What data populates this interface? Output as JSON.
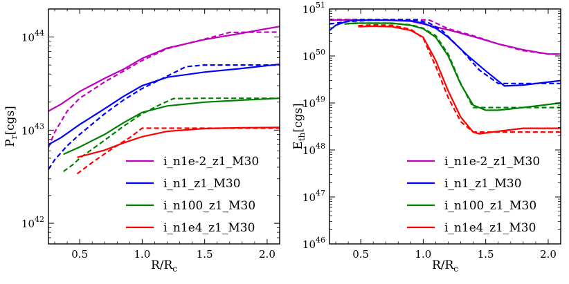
{
  "figure": {
    "panels": 2,
    "colors": {
      "magenta": "#bf00bf",
      "blue": "#0000ff",
      "green": "#008000",
      "red": "#ff0000"
    }
  },
  "legend": [
    {
      "label": "i_n1e-2_z1_M30",
      "color": "#bf00bf"
    },
    {
      "label": "i_n1_z1_M30",
      "color": "#0000ff"
    },
    {
      "label": "i_n100_z1_M30",
      "color": "#008000"
    },
    {
      "label": "i_n1e4_z1_M30",
      "color": "#ff0000"
    }
  ],
  "chart_data": [
    {
      "type": "line",
      "title": "",
      "xlabel": "R/R",
      "xlabel_sub": "c",
      "ylabel": "P",
      "ylabel_sub": "r",
      "ylabel_unit": "[cgs]",
      "yscale": "log",
      "xlim": [
        0.25,
        2.1
      ],
      "ylim": [
        6e+41,
        2e+44
      ],
      "xticks": [
        "0.5",
        "1.0",
        "1.5",
        "2.0"
      ],
      "xtick_values": [
        0.5,
        1.0,
        1.5,
        2.0
      ],
      "yticks": [
        {
          "base": "10",
          "exp": "42",
          "value": 1e+42
        },
        {
          "base": "10",
          "exp": "43",
          "value": 1e+43
        },
        {
          "base": "10",
          "exp": "44",
          "value": 1e+44
        }
      ],
      "legend_position": "lower right",
      "series": [
        {
          "name": "i_n1e-2_z1_M30",
          "color": "#bf00bf",
          "style": "solid",
          "x": [
            0.25,
            0.35,
            0.5,
            0.7,
            0.85,
            1.0,
            1.2,
            1.5,
            1.8,
            2.1
          ],
          "y": [
            1.6e+43,
            1.9e+43,
            2.6e+43,
            3.6e+43,
            4.5e+43,
            5.9e+43,
            7.6e+43,
            9.4e+43,
            1.1e+44,
            1.3e+44
          ]
        },
        {
          "name": "i_n1e-2_z1_M30",
          "color": "#bf00bf",
          "style": "dashed",
          "x": [
            0.25,
            0.3,
            0.4,
            0.5,
            0.7,
            0.85,
            1.0,
            1.2,
            1.5,
            1.7,
            2.1
          ],
          "y": [
            6.5e+42,
            9.5e+42,
            1.6e+43,
            2.2e+43,
            3.3e+43,
            4.3e+43,
            5.6e+43,
            7.5e+43,
            9.5e+43,
            1.12e+44,
            1.13e+44
          ]
        },
        {
          "name": "i_n1_z1_M30",
          "color": "#0000ff",
          "style": "solid",
          "x": [
            0.25,
            0.35,
            0.5,
            0.7,
            0.85,
            1.0,
            1.2,
            1.5,
            1.8,
            2.1
          ],
          "y": [
            7e+42,
            8.3e+42,
            1.15e+43,
            1.7e+43,
            2.3e+43,
            3e+43,
            3.7e+43,
            4.2e+43,
            4.6e+43,
            5.1e+43
          ]
        },
        {
          "name": "i_n1_z1_M30",
          "color": "#0000ff",
          "style": "dashed",
          "x": [
            0.25,
            0.3,
            0.4,
            0.5,
            0.7,
            0.85,
            1.0,
            1.2,
            1.35,
            1.5,
            2.1
          ],
          "y": [
            3.8e+42,
            4.8e+42,
            6.8e+42,
            9e+42,
            1.5e+43,
            2.1e+43,
            2.8e+43,
            3.8e+43,
            4.8e+43,
            5e+43,
            5e+43
          ]
        },
        {
          "name": "i_n100_z1_M30",
          "color": "#008000",
          "style": "solid",
          "x": [
            0.37,
            0.5,
            0.7,
            0.85,
            1.0,
            1.2,
            1.5,
            1.8,
            2.1
          ],
          "y": [
            5.5e+42,
            6.6e+42,
            9e+42,
            1.2e+43,
            1.55e+43,
            1.82e+43,
            2e+43,
            2.1e+43,
            2.2e+43
          ]
        },
        {
          "name": "i_n100_z1_M30",
          "color": "#008000",
          "style": "dashed",
          "x": [
            0.37,
            0.45,
            0.5,
            0.7,
            0.85,
            1.0,
            1.15,
            1.25,
            1.5,
            2.1
          ],
          "y": [
            3.6e+42,
            4.3e+42,
            5e+42,
            7.8e+42,
            1.1e+43,
            1.5e+43,
            1.9e+43,
            2.18e+43,
            2.2e+43,
            2.2e+43
          ]
        },
        {
          "name": "i_n1e4_z1_M30",
          "color": "#ff0000",
          "style": "solid",
          "x": [
            0.48,
            0.7,
            0.85,
            1.0,
            1.2,
            1.5,
            1.8,
            2.1
          ],
          "y": [
            5.1e+42,
            6.1e+42,
            7.3e+42,
            8.5e+42,
            9.7e+42,
            1.04e+43,
            1.06e+43,
            1.07e+43
          ]
        },
        {
          "name": "i_n1e4_z1_M30",
          "color": "#ff0000",
          "style": "dashed",
          "x": [
            0.48,
            0.6,
            0.75,
            0.9,
            1.0,
            1.2,
            1.5,
            2.1
          ],
          "y": [
            3.4e+42,
            4.5e+42,
            6.2e+42,
            8.3e+42,
            1.05e+43,
            1.05e+43,
            1.05e+43,
            1.05e+43
          ]
        }
      ]
    },
    {
      "type": "line",
      "title": "",
      "xlabel": "R/R",
      "xlabel_sub": "c",
      "ylabel": "E",
      "ylabel_sub": "th",
      "ylabel_unit": "[cgs]",
      "yscale": "log",
      "xlim": [
        0.25,
        2.1
      ],
      "ylim": [
        1e+46,
        1e+51
      ],
      "xticks": [
        "0.5",
        "1.0",
        "1.5",
        "2.0"
      ],
      "xtick_values": [
        0.5,
        1.0,
        1.5,
        2.0
      ],
      "yticks": [
        {
          "base": "10",
          "exp": "46",
          "value": 1e+46
        },
        {
          "base": "10",
          "exp": "47",
          "value": 1e+47
        },
        {
          "base": "10",
          "exp": "48",
          "value": 1e+48
        },
        {
          "base": "10",
          "exp": "49",
          "value": 1e+49
        },
        {
          "base": "10",
          "exp": "50",
          "value": 1e+50
        },
        {
          "base": "10",
          "exp": "51",
          "value": 1e+51
        }
      ],
      "legend_position": "lower right",
      "series": [
        {
          "name": "i_n1e-2_z1_M30",
          "color": "#bf00bf",
          "style": "solid",
          "x": [
            0.25,
            0.35,
            0.5,
            0.7,
            0.9,
            1.0,
            1.2,
            1.4,
            1.6,
            1.8,
            2.0,
            2.1
          ],
          "y": [
            5.8e+50,
            5.8e+50,
            5.8e+50,
            5.8e+50,
            5.5e+50,
            4.8e+50,
            3.6e+50,
            2.6e+50,
            1.8e+50,
            1.35e+50,
            1.1e+50,
            1.1e+50
          ]
        },
        {
          "name": "i_n1e-2_z1_M30",
          "color": "#bf00bf",
          "style": "dashed",
          "x": [
            0.25,
            0.5,
            0.9,
            1.05,
            1.2,
            1.4,
            1.6,
            1.8,
            2.0,
            2.1
          ],
          "y": [
            6e+50,
            6e+50,
            6e+50,
            5.8e+50,
            3.8e+50,
            2.7e+50,
            1.8e+50,
            1.3e+50,
            1.1e+50,
            1.1e+50
          ]
        },
        {
          "name": "i_n1_z1_M30",
          "color": "#0000ff",
          "style": "solid",
          "x": [
            0.25,
            0.3,
            0.4,
            0.5,
            0.7,
            0.9,
            1.0,
            1.1,
            1.2,
            1.35,
            1.5,
            1.65,
            1.8,
            2.1
          ],
          "y": [
            3.5e+50,
            4.5e+50,
            5.6e+50,
            5.8e+50,
            5.8e+50,
            5.6e+50,
            5e+50,
            3.9e+50,
            2.5e+50,
            1.05e+50,
            4.8e+49,
            2.3e+49,
            2.4e+49,
            3e+49
          ]
        },
        {
          "name": "i_n1_z1_M30",
          "color": "#0000ff",
          "style": "dashed",
          "x": [
            0.25,
            0.4,
            0.6,
            0.8,
            0.95,
            1.05,
            1.15,
            1.3,
            1.45,
            1.6,
            1.8,
            2.1
          ],
          "y": [
            4.8e+50,
            5.4e+50,
            5.8e+50,
            5.8e+50,
            5.8e+50,
            5e+50,
            3.5e+50,
            1.4e+50,
            5e+49,
            2.6e+49,
            2.6e+49,
            2.6e+49
          ]
        },
        {
          "name": "i_n100_z1_M30",
          "color": "#008000",
          "style": "solid",
          "x": [
            0.37,
            0.45,
            0.6,
            0.75,
            0.9,
            1.0,
            1.1,
            1.2,
            1.3,
            1.4,
            1.5,
            1.6,
            1.8,
            2.1
          ],
          "y": [
            4.8e+50,
            5e+50,
            5e+50,
            5e+50,
            4.5e+50,
            3.8e+50,
            2.5e+50,
            1e+50,
            2.5e+49,
            9e+48,
            7e+48,
            7e+48,
            8e+48,
            1e+49
          ]
        },
        {
          "name": "i_n100_z1_M30",
          "color": "#008000",
          "style": "dashed",
          "x": [
            0.37,
            0.5,
            0.7,
            0.9,
            1.0,
            1.1,
            1.2,
            1.3,
            1.4,
            1.5,
            2.1
          ],
          "y": [
            4.8e+50,
            5e+50,
            5e+50,
            4.6e+50,
            3.9e+50,
            2.7e+50,
            1.1e+50,
            2.6e+49,
            8e+48,
            8e+48,
            8e+48
          ]
        },
        {
          "name": "i_n1e4_z1_M30",
          "color": "#ff0000",
          "style": "solid",
          "x": [
            0.48,
            0.6,
            0.75,
            0.9,
            1.0,
            1.1,
            1.2,
            1.3,
            1.4,
            1.45,
            1.55,
            1.8,
            2.1
          ],
          "y": [
            4.2e+50,
            4.3e+50,
            4.2e+50,
            3.5e+50,
            2.5e+50,
            8e+49,
            1.8e+49,
            5e+48,
            2.4e+48,
            2.2e+48,
            2.4e+48,
            2.9e+48,
            2.9e+48
          ]
        },
        {
          "name": "i_n1e4_z1_M30",
          "color": "#ff0000",
          "style": "dashed",
          "x": [
            0.48,
            0.6,
            0.75,
            0.9,
            1.0,
            1.1,
            1.2,
            1.3,
            1.4,
            1.5,
            2.1
          ],
          "y": [
            4.4e+50,
            4.6e+50,
            4.5e+50,
            3.7e+50,
            2.4e+50,
            6e+49,
            1.3e+49,
            4e+48,
            2.4e+48,
            2.4e+48,
            2.4e+48
          ]
        }
      ]
    }
  ]
}
